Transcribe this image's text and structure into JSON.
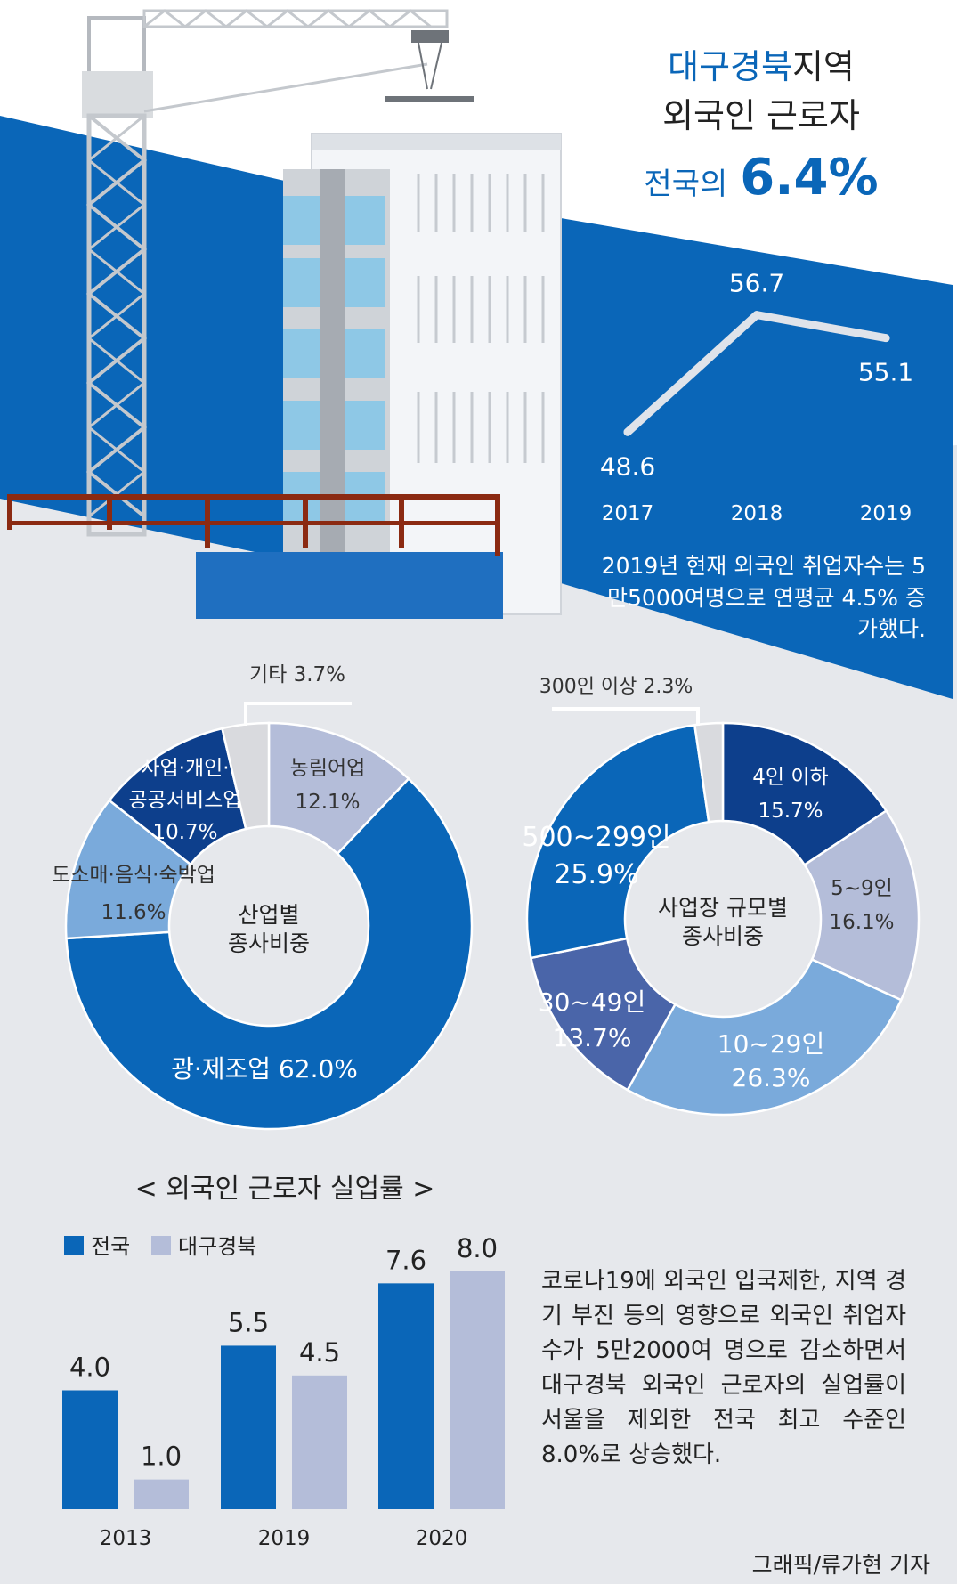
{
  "colors": {
    "brand_blue": "#0a66b8",
    "deep_blue": "#0d3f8c",
    "lavender": "#b4bdd9",
    "mid_blue": "#4a65a9",
    "light_blue": "#7aaadb",
    "grey": "#d9dade",
    "panel": "#e6e8ec"
  },
  "headline": {
    "line1_accent": "대구경북",
    "line1_rest": "지역",
    "line2": "외국인 근로자",
    "line3_prefix": "전국의",
    "line3_value": "6.4%"
  },
  "employment_note": "2019년 현재 외국인 취업자수는 5만5000여명으로 연평균 4.5% 증가했다.",
  "unemployment_note": "코로나19에 외국인 입국제한, 지역 경기 부진 등의 영향으로 외국인 취업자수가 5만2000여 명으로 감소하면서 대구경북 외국인 근로자의 실업률이 서울을 제외한 전국 최고 수준인 8.0%로 상승했다.",
  "credit": "그래픽/류가현 기자",
  "chart_data": [
    {
      "type": "line",
      "title": "",
      "x": [
        "2017",
        "2018",
        "2019"
      ],
      "values": [
        48.6,
        56.7,
        55.1
      ],
      "value_labels": [
        "48.6",
        "56.7",
        "55.1"
      ],
      "ylim": [
        44,
        60
      ]
    },
    {
      "type": "pie",
      "title": "산업별 종사비중",
      "center_lines": [
        "산업별",
        "종사비중"
      ],
      "slices": [
        {
          "label_lines": [
            "농림어업"
          ],
          "value": 12.1,
          "value_label": "12.1%",
          "color": "#b4bdd9"
        },
        {
          "label_lines": [
            "광·제조업"
          ],
          "value": 62.0,
          "value_label": "62.0%",
          "color": "#0a66b8"
        },
        {
          "label_lines": [
            "도소매·음식·숙박업"
          ],
          "value": 11.6,
          "value_label": "11.6%",
          "color": "#7aaadb"
        },
        {
          "label_lines": [
            "사업·개인·",
            "공공서비스업"
          ],
          "value": 10.7,
          "value_label": "10.7%",
          "color": "#0d3f8c"
        },
        {
          "label_lines": [
            "기타"
          ],
          "value": 3.7,
          "value_label": "3.7%",
          "color": "#d9dade"
        }
      ]
    },
    {
      "type": "pie",
      "title": "사업장 규모별 종사비중",
      "center_lines": [
        "사업장 규모별",
        "종사비중"
      ],
      "slices": [
        {
          "label_lines": [
            "4인 이하"
          ],
          "value": 15.7,
          "value_label": "15.7%",
          "color": "#0d3f8c"
        },
        {
          "label_lines": [
            "5~9인"
          ],
          "value": 16.1,
          "value_label": "16.1%",
          "color": "#b4bdd9"
        },
        {
          "label_lines": [
            "10~29인"
          ],
          "value": 26.3,
          "value_label": "26.3%",
          "color": "#7aaadb"
        },
        {
          "label_lines": [
            "30~49인"
          ],
          "value": 13.7,
          "value_label": "13.7%",
          "color": "#4a65a9"
        },
        {
          "label_lines": [
            "500~299인"
          ],
          "value": 25.9,
          "value_label": "25.9%",
          "color": "#0a66b8"
        },
        {
          "label_lines": [
            "300인 이상"
          ],
          "value": 2.3,
          "value_label": "2.3%",
          "color": "#d9dade"
        }
      ]
    },
    {
      "type": "bar",
      "title": "< 외국인 근로자 실업률 >",
      "categories": [
        "2013",
        "2019",
        "2020"
      ],
      "series": [
        {
          "name": "전국",
          "values": [
            4.0,
            5.5,
            7.6
          ],
          "labels": [
            "4.0",
            "5.5",
            "7.6"
          ],
          "color": "#0a66b8"
        },
        {
          "name": "대구경북",
          "values": [
            1.0,
            4.5,
            8.0
          ],
          "labels": [
            "1.0",
            "4.5",
            "8.0"
          ],
          "color": "#b4bdd9"
        }
      ],
      "ylim": [
        0,
        8.0
      ]
    }
  ]
}
